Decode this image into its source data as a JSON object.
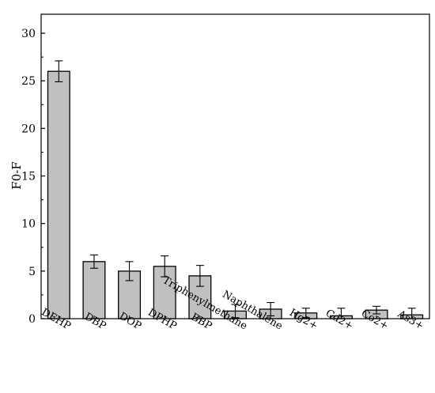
{
  "chart_data": {
    "type": "bar",
    "title": "",
    "xlabel": "",
    "ylabel": "F0-F",
    "ylim": [
      0,
      32
    ],
    "yticks": [
      0,
      5,
      10,
      15,
      20,
      25,
      30
    ],
    "grid": false,
    "categories": [
      "DEHP",
      "DBP",
      "DOP",
      "DPHP",
      "BBP",
      "Triphenylmethane",
      "Naphthalene",
      "Hg2+",
      "Cd2+",
      "Co2+",
      "As3+"
    ],
    "values": [
      26.0,
      6.0,
      5.0,
      5.5,
      4.5,
      0.8,
      1.0,
      0.6,
      0.3,
      0.9,
      0.4
    ],
    "errors": [
      1.1,
      0.7,
      1.0,
      1.1,
      1.1,
      0.7,
      0.7,
      0.5,
      0.8,
      0.4,
      0.7
    ],
    "bar_color": "#c0c0c0",
    "edge_color": "#000000"
  }
}
